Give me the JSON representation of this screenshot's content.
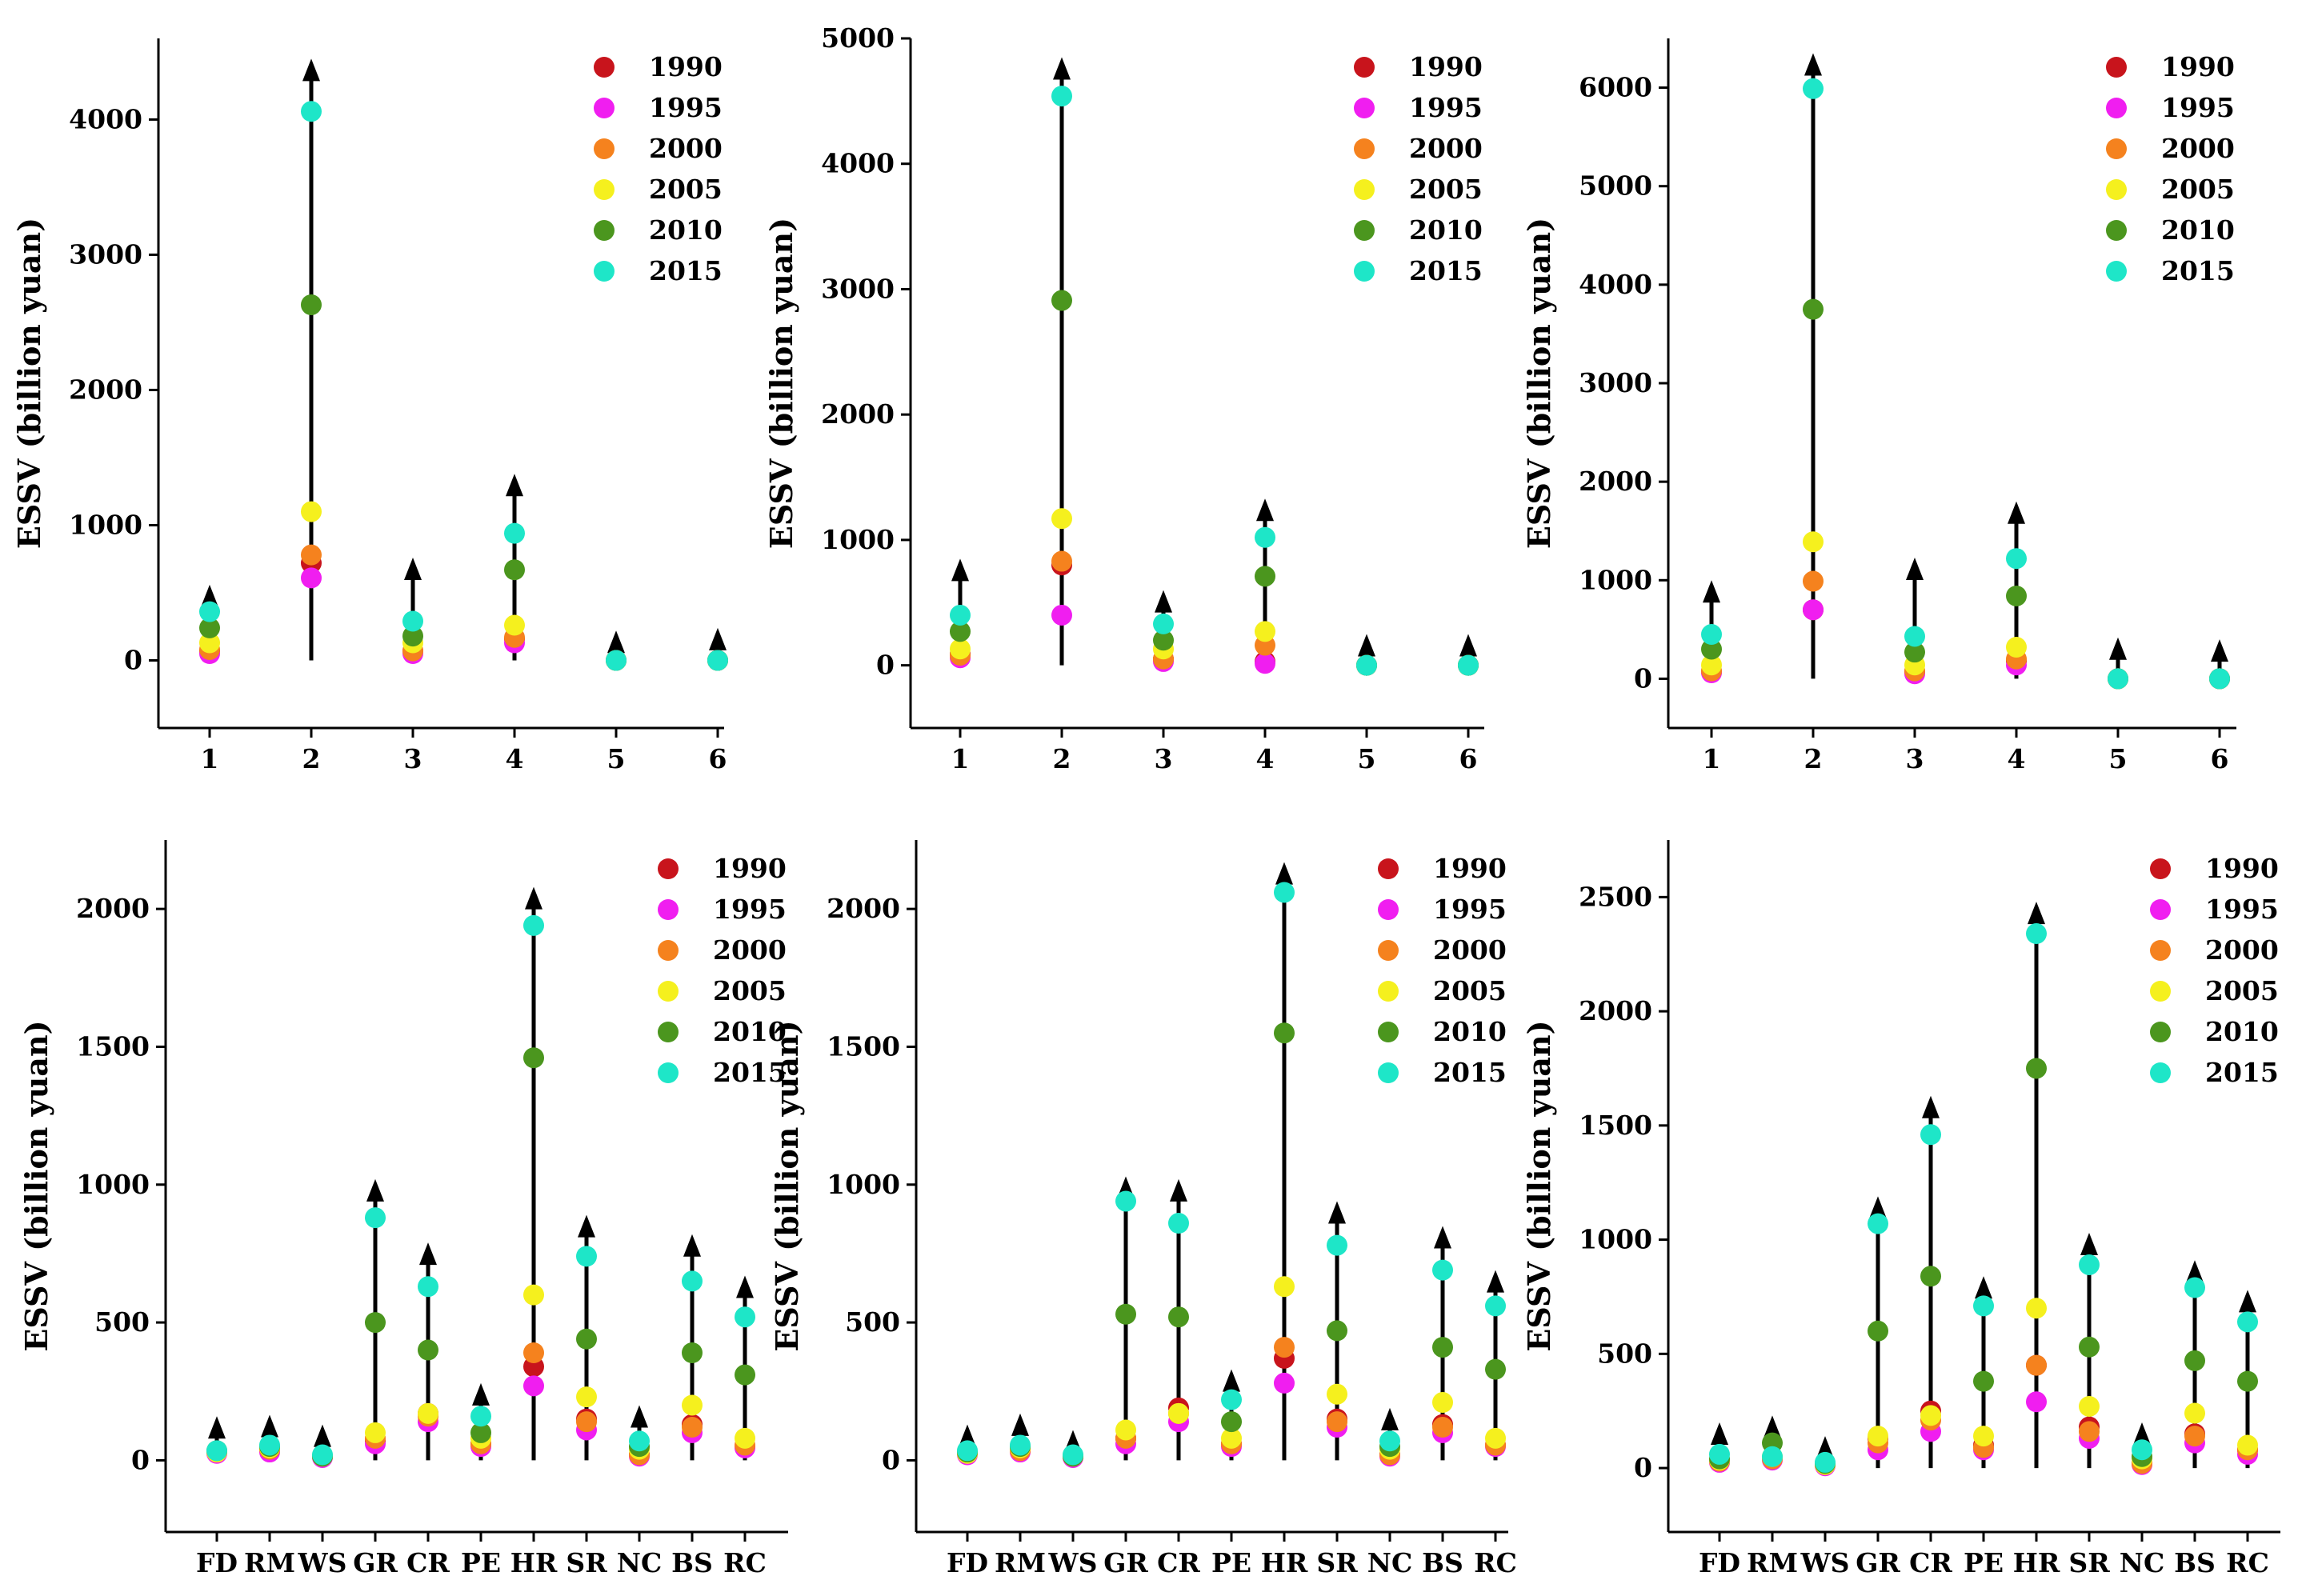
{
  "legend": {
    "years": [
      "1990",
      "1995",
      "2000",
      "2005",
      "2010",
      "2015"
    ],
    "colors": [
      "#c8141c",
      "#f01ef0",
      "#f5821e",
      "#f5f01e",
      "#4b961e",
      "#1ee6c8"
    ]
  },
  "chart_data": [
    {
      "type": "scatter",
      "title": "",
      "xlabel": "",
      "ylabel": "ESSV (billion yuan)",
      "ylim": [
        -500,
        4600
      ],
      "yticks": [
        0,
        1000,
        2000,
        3000,
        4000
      ],
      "categories": [
        "1",
        "2",
        "3",
        "4",
        "5",
        "6"
      ],
      "arrow_tops": [
        560,
        4450,
        760,
        1380,
        220,
        240
      ],
      "legend_position": "top-right",
      "series": [
        {
          "name": "1990",
          "values": [
            70,
            720,
            70,
            160,
            0,
            0
          ]
        },
        {
          "name": "1995",
          "values": [
            50,
            610,
            50,
            130,
            0,
            0
          ]
        },
        {
          "name": "2000",
          "values": [
            80,
            780,
            70,
            170,
            0,
            0
          ]
        },
        {
          "name": "2005",
          "values": [
            130,
            1100,
            130,
            260,
            0,
            0
          ]
        },
        {
          "name": "2010",
          "values": [
            240,
            2630,
            180,
            670,
            0,
            0
          ]
        },
        {
          "name": "2015",
          "values": [
            360,
            4060,
            290,
            940,
            0,
            0
          ]
        }
      ]
    },
    {
      "type": "scatter",
      "title": "",
      "xlabel": "",
      "ylabel": "ESSV (billion yuan)",
      "ylim": [
        -500,
        5000
      ],
      "yticks": [
        0,
        1000,
        2000,
        3000,
        4000,
        5000
      ],
      "categories": [
        "1",
        "2",
        "3",
        "4",
        "5",
        "6"
      ],
      "arrow_tops": [
        850,
        4850,
        600,
        1330,
        250,
        250
      ],
      "legend_position": "top-right",
      "series": [
        {
          "name": "1990",
          "values": [
            90,
            800,
            50,
            30,
            0,
            0
          ]
        },
        {
          "name": "1995",
          "values": [
            60,
            400,
            30,
            15,
            0,
            0
          ]
        },
        {
          "name": "2000",
          "values": [
            80,
            830,
            50,
            160,
            0,
            0
          ]
        },
        {
          "name": "2005",
          "values": [
            130,
            1170,
            130,
            270,
            0,
            0
          ]
        },
        {
          "name": "2010",
          "values": [
            270,
            2910,
            200,
            710,
            0,
            0
          ]
        },
        {
          "name": "2015",
          "values": [
            400,
            4540,
            330,
            1020,
            0,
            0
          ]
        }
      ]
    },
    {
      "type": "scatter",
      "title": "",
      "xlabel": "",
      "ylabel": "ESSV (billion yuan)",
      "ylim": [
        -500,
        6500
      ],
      "yticks": [
        0,
        1000,
        2000,
        3000,
        4000,
        5000,
        6000
      ],
      "categories": [
        "1",
        "2",
        "3",
        "4",
        "5",
        "6"
      ],
      "arrow_tops": [
        1000,
        6350,
        1230,
        1800,
        420,
        400
      ],
      "legend_position": "top-right",
      "series": [
        {
          "name": "1990",
          "values": [
            70,
            700,
            70,
            180,
            0,
            0
          ]
        },
        {
          "name": "1995",
          "values": [
            60,
            700,
            50,
            140,
            0,
            0
          ]
        },
        {
          "name": "2000",
          "values": [
            80,
            990,
            80,
            200,
            0,
            0
          ]
        },
        {
          "name": "2005",
          "values": [
            140,
            1390,
            140,
            320,
            0,
            0
          ]
        },
        {
          "name": "2010",
          "values": [
            300,
            3750,
            270,
            840,
            0,
            0
          ]
        },
        {
          "name": "2015",
          "values": [
            450,
            5990,
            430,
            1220,
            0,
            0
          ]
        }
      ]
    },
    {
      "type": "scatter",
      "title": "",
      "xlabel": "",
      "ylabel": "ESSV (billion yuan)",
      "ylim": [
        -260,
        2250
      ],
      "yticks": [
        0,
        500,
        1000,
        1500,
        2000
      ],
      "categories": [
        "FD",
        "RM",
        "WS",
        "GR",
        "CR",
        "PE",
        "HR",
        "SR",
        "NC",
        "BS",
        "RC"
      ],
      "arrow_tops": [
        160,
        165,
        130,
        1020,
        790,
        280,
        2080,
        890,
        200,
        820,
        670
      ],
      "legend_position": "top-right",
      "series": [
        {
          "name": "1990",
          "values": [
            30,
            40,
            15,
            70,
            170,
            60,
            340,
            150,
            20,
            130,
            50
          ]
        },
        {
          "name": "1995",
          "values": [
            25,
            30,
            10,
            60,
            140,
            50,
            270,
            110,
            15,
            100,
            45
          ]
        },
        {
          "name": "2000",
          "values": [
            30,
            40,
            15,
            80,
            160,
            60,
            390,
            140,
            20,
            120,
            55
          ]
        },
        {
          "name": "2005",
          "values": [
            30,
            45,
            15,
            100,
            170,
            80,
            600,
            230,
            40,
            200,
            80
          ]
        },
        {
          "name": "2010",
          "values": [
            35,
            50,
            15,
            500,
            400,
            100,
            1460,
            440,
            50,
            390,
            310
          ]
        },
        {
          "name": "2015",
          "values": [
            35,
            55,
            20,
            880,
            630,
            160,
            1940,
            740,
            70,
            650,
            520
          ]
        }
      ]
    },
    {
      "type": "scatter",
      "title": "",
      "xlabel": "",
      "ylabel": "ESSV (billion yuan)",
      "ylim": [
        -260,
        2250
      ],
      "yticks": [
        0,
        500,
        1000,
        1500,
        2000
      ],
      "categories": [
        "FD",
        "RM",
        "WS",
        "GR",
        "CR",
        "PE",
        "HR",
        "SR",
        "NC",
        "BS",
        "RC"
      ],
      "arrow_tops": [
        130,
        170,
        110,
        1030,
        1020,
        330,
        2170,
        940,
        190,
        850,
        690
      ],
      "legend_position": "top-right",
      "series": [
        {
          "name": "1990",
          "values": [
            25,
            40,
            15,
            80,
            190,
            60,
            370,
            150,
            20,
            130,
            55
          ]
        },
        {
          "name": "1995",
          "values": [
            20,
            30,
            10,
            60,
            140,
            50,
            280,
            120,
            15,
            100,
            50
          ]
        },
        {
          "name": "2000",
          "values": [
            25,
            35,
            15,
            80,
            170,
            60,
            410,
            140,
            20,
            120,
            55
          ]
        },
        {
          "name": "2005",
          "values": [
            25,
            45,
            15,
            110,
            170,
            80,
            630,
            240,
            40,
            210,
            80
          ]
        },
        {
          "name": "2010",
          "values": [
            30,
            50,
            15,
            530,
            520,
            140,
            1550,
            470,
            50,
            410,
            330
          ]
        },
        {
          "name": "2015",
          "values": [
            35,
            55,
            20,
            940,
            860,
            220,
            2060,
            780,
            70,
            690,
            560
          ]
        }
      ]
    },
    {
      "type": "scatter",
      "title": "",
      "xlabel": "",
      "ylabel": "ESSV (billion yuan)",
      "ylim": [
        -280,
        2750
      ],
      "yticks": [
        0,
        500,
        1000,
        1500,
        2000,
        2500
      ],
      "categories": [
        "FD",
        "RM",
        "WS",
        "GR",
        "CR",
        "PE",
        "HR",
        "SR",
        "NC",
        "BS",
        "RC"
      ],
      "arrow_tops": [
        200,
        230,
        140,
        1190,
        1630,
        840,
        2480,
        1030,
        200,
        910,
        780
      ],
      "legend_position": "top-right",
      "series": [
        {
          "name": "1990",
          "values": [
            30,
            45,
            15,
            130,
            250,
            100,
            450,
            180,
            20,
            150,
            80
          ]
        },
        {
          "name": "1995",
          "values": [
            25,
            35,
            10,
            80,
            160,
            80,
            290,
            130,
            15,
            110,
            60
          ]
        },
        {
          "name": "2000",
          "values": [
            30,
            40,
            15,
            110,
            210,
            90,
            450,
            160,
            20,
            140,
            80
          ]
        },
        {
          "name": "2005",
          "values": [
            35,
            50,
            15,
            140,
            230,
            140,
            700,
            270,
            40,
            240,
            100
          ]
        },
        {
          "name": "2010",
          "values": [
            40,
            110,
            20,
            600,
            840,
            380,
            1750,
            530,
            50,
            470,
            380
          ]
        },
        {
          "name": "2015",
          "values": [
            60,
            50,
            25,
            1070,
            1460,
            710,
            2340,
            890,
            80,
            790,
            640
          ]
        }
      ]
    }
  ]
}
